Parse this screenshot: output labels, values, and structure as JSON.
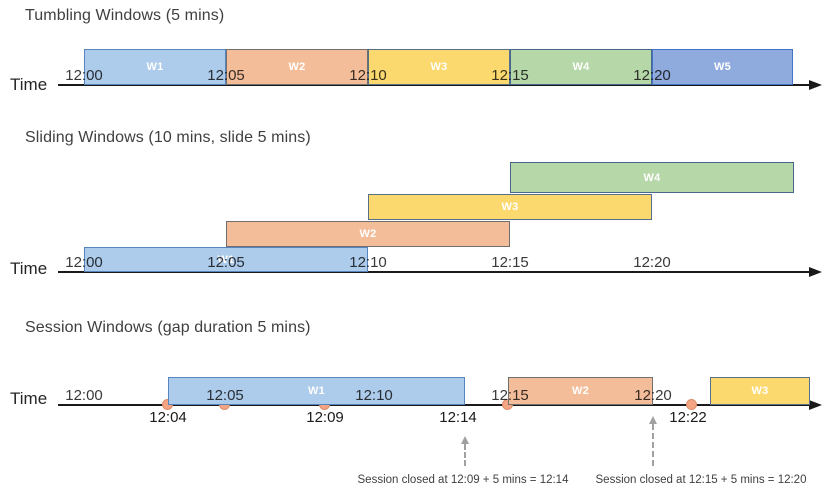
{
  "sections": [
    {
      "id": "tumbling",
      "title": "Tumbling Windows (5 mins)",
      "time_axis_label": "Time",
      "tick_labels": [
        "12:00",
        "12:05",
        "12:10",
        "12:15",
        "12:20"
      ],
      "windows": [
        {
          "label": "W1",
          "color": "light-blue"
        },
        {
          "label": "W2",
          "color": "orange"
        },
        {
          "label": "W3",
          "color": "yellow"
        },
        {
          "label": "W4",
          "color": "green"
        },
        {
          "label": "W5",
          "color": "periwinkle-blue"
        }
      ]
    },
    {
      "id": "sliding",
      "title": "Sliding Windows (10 mins, slide 5 mins)",
      "time_axis_label": "Time",
      "tick_labels": [
        "12:00",
        "12:05",
        "12:10",
        "12:15",
        "12:20"
      ],
      "windows": [
        {
          "label": "W1",
          "color": "light-blue"
        },
        {
          "label": "W2",
          "color": "orange"
        },
        {
          "label": "W3",
          "color": "yellow"
        },
        {
          "label": "W4",
          "color": "green"
        }
      ]
    },
    {
      "id": "session",
      "title": "Session Windows (gap duration 5 mins)",
      "time_axis_label": "Time",
      "tick_labels": [
        "12:00",
        "12:05",
        "12:10",
        "12:15",
        "12:20"
      ],
      "windows": [
        {
          "label": "W1",
          "color": "light-blue"
        },
        {
          "label": "W2",
          "color": "orange"
        },
        {
          "label": "W3",
          "color": "yellow"
        }
      ],
      "event_time_labels": [
        "12:04",
        "12:09",
        "12:14",
        "12:22"
      ],
      "annotations": [
        "Session closed at 12:09 + 5 mins = 12:14",
        "Session closed at 12:15 + 5 mins = 12:20"
      ]
    }
  ],
  "colors": {
    "light-blue": {
      "fill": "#ADCBEA",
      "border": "#5585BC"
    },
    "periwinkle-blue": {
      "fill": "#8FAADC",
      "border": "#4472C4"
    },
    "orange": {
      "fill": "#F4BD99",
      "border": "#6F6F6F"
    },
    "yellow": {
      "fill": "#FBD96E",
      "border": "#56708C"
    },
    "green": {
      "fill": "#B6D7A8",
      "border": "#47688C"
    },
    "event_dot": {
      "fill": "#F2A483",
      "border": "#DD8F6B"
    },
    "axis": "#1A1A1A",
    "annotation_arrow": "#A0A0A0"
  }
}
